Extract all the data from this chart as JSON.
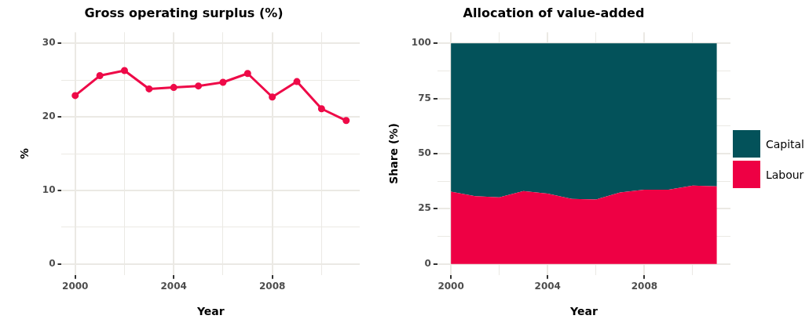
{
  "chart_data": [
    {
      "type": "line",
      "title": "Gross operating surplus (%)",
      "xlabel": "Year",
      "ylabel": "%",
      "x": [
        2000,
        2001,
        2002,
        2003,
        2004,
        2005,
        2006,
        2007,
        2008,
        2009,
        2010,
        2011
      ],
      "series": [
        {
          "color": "#ee0a48",
          "values": [
            22.9,
            25.6,
            26.3,
            23.8,
            24.0,
            24.2,
            24.7,
            25.9,
            22.7,
            24.8,
            21.1,
            19.5
          ]
        }
      ],
      "xlim": [
        1999.45,
        2011.55
      ],
      "xticks": [
        2000,
        {
          "value": 2002,
          "label": null
        },
        2004,
        {
          "value": 2006,
          "label": null
        },
        2008,
        {
          "value": 2010,
          "label": null
        }
      ],
      "ylim": [
        -1.5,
        31.5
      ],
      "yticks": [
        0,
        {
          "value": 5,
          "label": null
        },
        10,
        {
          "value": 15,
          "label": null
        },
        20,
        {
          "value": 25,
          "label": null
        },
        30
      ],
      "grid": true,
      "marker": "circle",
      "legend": false
    },
    {
      "type": "area",
      "title": "Allocation of value-added",
      "xlabel": "Year",
      "ylabel": "Share (%)",
      "x": [
        2000,
        2001,
        2002,
        2003,
        2004,
        2005,
        2006,
        2007,
        2008,
        2009,
        2010,
        2011
      ],
      "stacked": true,
      "series": [
        {
          "name": "Labour",
          "color": "#ee0044",
          "values": [
            32.8,
            30.7,
            30.2,
            33.0,
            31.9,
            29.5,
            29.2,
            32.4,
            33.7,
            33.7,
            35.5,
            35.2
          ]
        },
        {
          "name": "Capital",
          "color": "#03525a",
          "values": [
            67.2,
            69.3,
            69.8,
            67.0,
            68.1,
            70.5,
            70.8,
            67.6,
            66.3,
            66.3,
            64.5,
            64.8
          ]
        }
      ],
      "xlim": [
        1999.44,
        2011.56
      ],
      "xticks": [
        2000,
        {
          "value": 2002,
          "label": null
        },
        2004,
        {
          "value": 2006,
          "label": null
        },
        2008,
        {
          "value": 2010,
          "label": null
        }
      ],
      "ylim": [
        -5,
        105
      ],
      "yticks": [
        0,
        {
          "value": 12.5,
          "label": null
        },
        25,
        {
          "value": 37.5,
          "label": null
        },
        50,
        {
          "value": 62.5,
          "label": null
        },
        75,
        {
          "value": 87.5,
          "label": null
        },
        100
      ],
      "grid": true,
      "legend": "right"
    }
  ]
}
